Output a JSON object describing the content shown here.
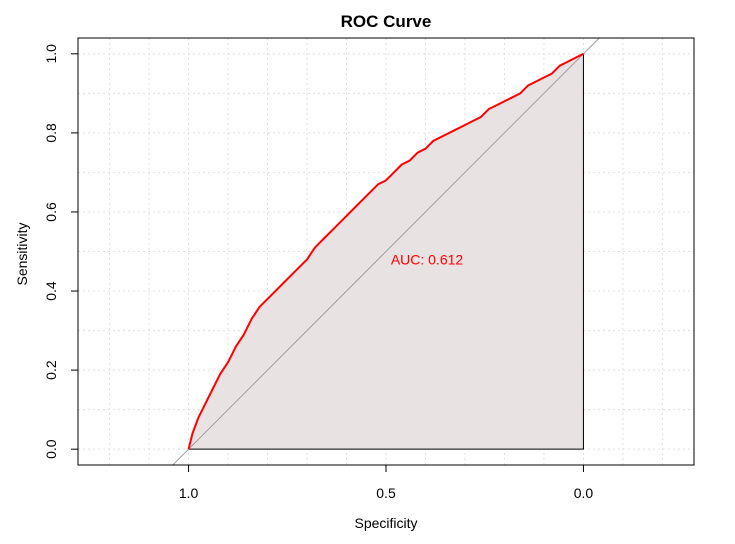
{
  "chart_data": {
    "type": "line",
    "title": "ROC Curve",
    "xlabel": "Specificity",
    "ylabel": "Sensitivity",
    "x_reversed": true,
    "xlim": [
      1.28,
      -0.28
    ],
    "ylim": [
      -0.04,
      1.04
    ],
    "x_ticks": [
      1.0,
      0.5,
      0.0
    ],
    "x_tick_labels": [
      "1.0",
      "0.5",
      "0.0"
    ],
    "y_ticks": [
      0.0,
      0.2,
      0.4,
      0.6,
      0.8,
      1.0
    ],
    "y_tick_labels": [
      "0.0",
      "0.2",
      "0.4",
      "0.6",
      "0.8",
      "1.0"
    ],
    "grid": true,
    "annotation": {
      "text": "AUC: 0.612",
      "x": 0.5,
      "y": 0.48,
      "color": "#ff0000"
    },
    "colors": {
      "curve": "#ff0000",
      "fill": "#e8e2e2",
      "diagonal": "#a0a0a0",
      "grid": "#e0e0e0"
    },
    "series": [
      {
        "x": [
          1.0,
          0.99,
          0.975,
          0.96,
          0.94,
          0.92,
          0.9,
          0.88,
          0.86,
          0.84,
          0.82,
          0.8,
          0.78,
          0.76,
          0.74,
          0.72,
          0.7,
          0.68,
          0.66,
          0.64,
          0.62,
          0.6,
          0.58,
          0.56,
          0.54,
          0.52,
          0.5,
          0.48,
          0.46,
          0.44,
          0.42,
          0.4,
          0.38,
          0.36,
          0.34,
          0.32,
          0.3,
          0.28,
          0.26,
          0.24,
          0.22,
          0.2,
          0.18,
          0.16,
          0.14,
          0.12,
          0.1,
          0.08,
          0.06,
          0.04,
          0.02,
          0.0
        ],
        "y": [
          0.0,
          0.04,
          0.08,
          0.11,
          0.15,
          0.19,
          0.22,
          0.26,
          0.29,
          0.33,
          0.36,
          0.38,
          0.4,
          0.42,
          0.44,
          0.46,
          0.48,
          0.51,
          0.53,
          0.55,
          0.57,
          0.59,
          0.61,
          0.63,
          0.65,
          0.67,
          0.68,
          0.7,
          0.72,
          0.73,
          0.75,
          0.76,
          0.78,
          0.79,
          0.8,
          0.81,
          0.82,
          0.83,
          0.84,
          0.86,
          0.87,
          0.88,
          0.89,
          0.9,
          0.92,
          0.93,
          0.94,
          0.95,
          0.97,
          0.98,
          0.99,
          1.0
        ]
      }
    ]
  }
}
